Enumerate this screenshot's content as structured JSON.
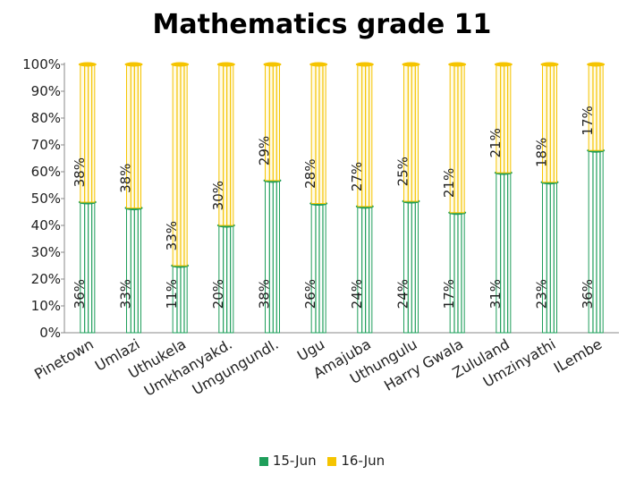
{
  "chart_data": {
    "type": "bar",
    "title": "Mathematics grade 11",
    "stacked": true,
    "percent_axis": true,
    "xlabel": "",
    "ylabel": "",
    "ylim": [
      0,
      100
    ],
    "ytick_labels": [
      "0%",
      "10%",
      "20%",
      "30%",
      "40%",
      "50%",
      "60%",
      "70%",
      "80%",
      "90%",
      "100%"
    ],
    "categories": [
      "Pinetown",
      "Umlazi",
      "Uthukela",
      "Umkhanyakd.",
      "Umgungundl.",
      "Ugu",
      "Amajuba",
      "Uthungulu",
      "Harry Gwala",
      "Zululand",
      "Umzinyathi",
      "ILembe"
    ],
    "series": [
      {
        "name": "15-Jun",
        "color": "#1e9e5a",
        "values": [
          36,
          33,
          11,
          20,
          38,
          26,
          24,
          24,
          17,
          31,
          23,
          36
        ],
        "labels": [
          "36%",
          "33%",
          "11%",
          "20%",
          "38%",
          "26%",
          "24%",
          "24%",
          "17%",
          "31%",
          "23%",
          "36%"
        ]
      },
      {
        "name": "16-Jun",
        "color": "#f5c400",
        "values": [
          38,
          38,
          33,
          30,
          29,
          28,
          27,
          25,
          21,
          21,
          18,
          17
        ],
        "labels": [
          "38%",
          "38%",
          "33%",
          "30%",
          "29%",
          "28%",
          "27%",
          "25%",
          "21%",
          "21%",
          "18%",
          "17%"
        ]
      }
    ],
    "legend_position": "bottom",
    "grid": false
  }
}
